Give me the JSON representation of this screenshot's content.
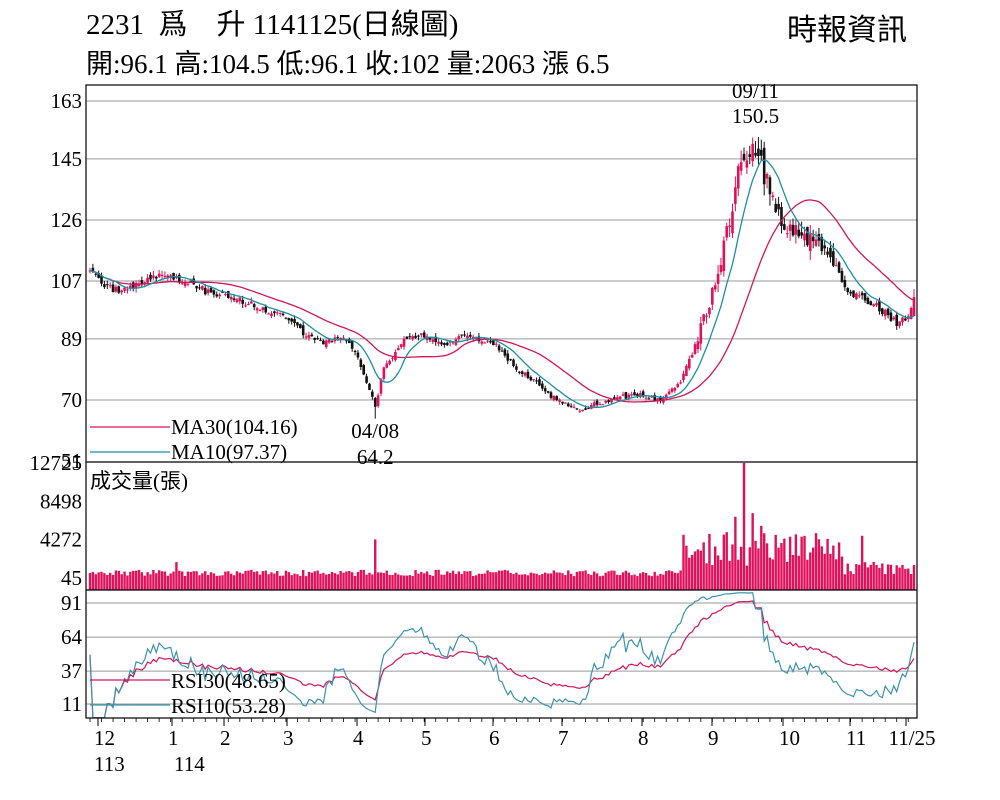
{
  "header": {
    "code": "2231",
    "name": "爲　升",
    "period": "1141125(日線圖)",
    "ohlc": "開:96.1 高:104.5 低:96.1 收:102 量:2063 漲 6.5",
    "source": "時報資訊"
  },
  "chart_data": {
    "type": "candlestick",
    "price_axis": {
      "ticks": [
        "163",
        "145",
        "126",
        "107",
        "89",
        "70",
        "51"
      ],
      "values": [
        163,
        145,
        126,
        107,
        89,
        70,
        51
      ],
      "ylim": [
        51,
        163
      ]
    },
    "volume_axis": {
      "ticks": [
        "12725",
        "8498",
        "4272",
        "45"
      ],
      "values": [
        12725,
        8498,
        4272,
        45
      ]
    },
    "rsi_axis": {
      "ticks": [
        "91",
        "64",
        "37",
        "11"
      ],
      "values": [
        91,
        64,
        37,
        11
      ]
    },
    "x_axis": {
      "month_labels": [
        "12",
        "1",
        "2",
        "3",
        "4",
        "5",
        "6",
        "7",
        "8",
        "9",
        "10",
        "11",
        "11/25"
      ],
      "year_labels": [
        "113",
        "114"
      ]
    },
    "legend": {
      "ma30": "MA30(104.16)",
      "ma10": "MA10(97.37)",
      "volume": "成交量(張)",
      "rsi30": "RSI30(48.65)",
      "rsi10": "RSI10(53.28)"
    },
    "annotations": {
      "high": {
        "date": "09/11",
        "value": "150.5"
      },
      "low": {
        "date": "04/08",
        "value": "64.2"
      }
    },
    "close_anchors": [
      {
        "day": 0,
        "close": 110
      },
      {
        "day": 8,
        "close": 104
      },
      {
        "day": 16,
        "close": 106
      },
      {
        "day": 22,
        "close": 109
      },
      {
        "day": 30,
        "close": 108
      },
      {
        "day": 40,
        "close": 104
      },
      {
        "day": 50,
        "close": 102
      },
      {
        "day": 60,
        "close": 98
      },
      {
        "day": 70,
        "close": 95
      },
      {
        "day": 75,
        "close": 90
      },
      {
        "day": 82,
        "close": 88
      },
      {
        "day": 88,
        "close": 90
      },
      {
        "day": 92,
        "close": 85
      },
      {
        "day": 95,
        "close": 78
      },
      {
        "day": 99,
        "close": 68
      },
      {
        "day": 102,
        "close": 80
      },
      {
        "day": 108,
        "close": 88
      },
      {
        "day": 115,
        "close": 90
      },
      {
        "day": 122,
        "close": 87
      },
      {
        "day": 130,
        "close": 90
      },
      {
        "day": 140,
        "close": 88
      },
      {
        "day": 148,
        "close": 80
      },
      {
        "day": 155,
        "close": 75
      },
      {
        "day": 162,
        "close": 70
      },
      {
        "day": 170,
        "close": 67
      },
      {
        "day": 180,
        "close": 70
      },
      {
        "day": 190,
        "close": 72
      },
      {
        "day": 198,
        "close": 70
      },
      {
        "day": 205,
        "close": 75
      },
      {
        "day": 210,
        "close": 87
      },
      {
        "day": 215,
        "close": 100
      },
      {
        "day": 220,
        "close": 118
      },
      {
        "day": 225,
        "close": 140
      },
      {
        "day": 231,
        "close": 148
      },
      {
        "day": 236,
        "close": 135
      },
      {
        "day": 241,
        "close": 124
      },
      {
        "day": 248,
        "close": 120
      },
      {
        "day": 256,
        "close": 116
      },
      {
        "day": 264,
        "close": 103
      },
      {
        "day": 272,
        "close": 100
      },
      {
        "day": 280,
        "close": 94
      },
      {
        "day": 284,
        "close": 96
      },
      {
        "day": 286,
        "close": 102
      }
    ],
    "volume_spikes": [
      {
        "day": 30,
        "value": 1800
      },
      {
        "day": 99,
        "value": 4300
      },
      {
        "day": 211,
        "value": 3200
      },
      {
        "day": 221,
        "value": 5100
      },
      {
        "day": 224,
        "value": 6800
      },
      {
        "day": 227,
        "value": 12725
      },
      {
        "day": 230,
        "value": 7200
      },
      {
        "day": 233,
        "value": 5800
      },
      {
        "day": 238,
        "value": 4800
      },
      {
        "day": 243,
        "value": 4600
      },
      {
        "day": 268,
        "value": 4700
      }
    ],
    "colors": {
      "up": "#e0105a",
      "down": "#111111",
      "ma30": "#d4145a",
      "ma10": "#1a8fa6",
      "rsi30": "#d4145a",
      "rsi10": "#3a93ad",
      "volume": "#e0105a",
      "grid": "#9a9a9a"
    }
  }
}
